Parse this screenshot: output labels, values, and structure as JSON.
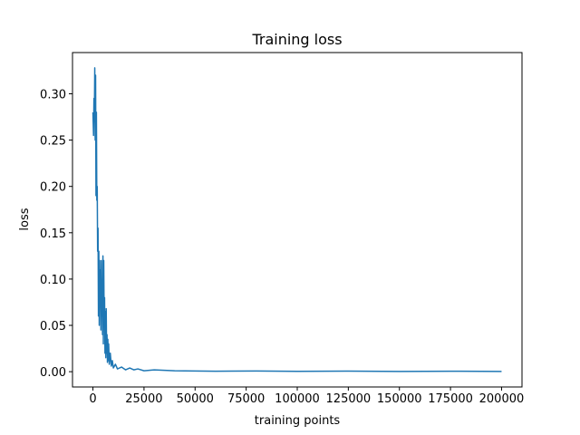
{
  "chart_data": {
    "type": "line",
    "title": "Training loss",
    "x_label": "training points",
    "y_label": "loss",
    "x": [
      0,
      300,
      500,
      700,
      900,
      1100,
      1300,
      1500,
      1700,
      1900,
      2100,
      2300,
      2500,
      2700,
      2900,
      3100,
      3300,
      3500,
      3700,
      3900,
      4100,
      4300,
      4500,
      4700,
      4900,
      5100,
      5300,
      5500,
      5700,
      5900,
      6100,
      6300,
      6500,
      6700,
      6900,
      7100,
      7300,
      7500,
      7700,
      8000,
      8500,
      9000,
      9500,
      10000,
      11000,
      12000,
      14000,
      16000,
      18000,
      20000,
      22000,
      25000,
      30000,
      40000,
      60000,
      80000,
      100000,
      125000,
      150000,
      175000,
      200000
    ],
    "series": [
      {
        "name": "loss",
        "color": "#1f77b4",
        "values": [
          0.28,
          0.255,
          0.295,
          0.27,
          0.328,
          0.25,
          0.32,
          0.19,
          0.28,
          0.185,
          0.2,
          0.13,
          0.155,
          0.06,
          0.13,
          0.05,
          0.12,
          0.07,
          0.11,
          0.045,
          0.12,
          0.06,
          0.09,
          0.04,
          0.125,
          0.03,
          0.12,
          0.05,
          0.08,
          0.02,
          0.065,
          0.015,
          0.068,
          0.02,
          0.04,
          0.01,
          0.035,
          0.012,
          0.03,
          0.008,
          0.02,
          0.006,
          0.012,
          0.004,
          0.008,
          0.003,
          0.005,
          0.002,
          0.004,
          0.002,
          0.003,
          0.001,
          0.002,
          0.001,
          0.0005,
          0.0008,
          0.0004,
          0.0006,
          0.0003,
          0.0005,
          0.0003
        ]
      }
    ],
    "xlim": [
      -10000,
      210000
    ],
    "ylim": [
      -0.0165,
      0.3445
    ],
    "xticks": [
      0,
      25000,
      50000,
      75000,
      100000,
      125000,
      150000,
      175000,
      200000
    ],
    "yticks": [
      {
        "value": 0,
        "label": "0.00"
      },
      0.05,
      {
        "value": 0.1,
        "label": "0.10"
      },
      0.15,
      {
        "value": 0.2,
        "label": "0.20"
      },
      0.25,
      {
        "value": 0.3,
        "label": "0.30"
      }
    ],
    "grid": false
  }
}
